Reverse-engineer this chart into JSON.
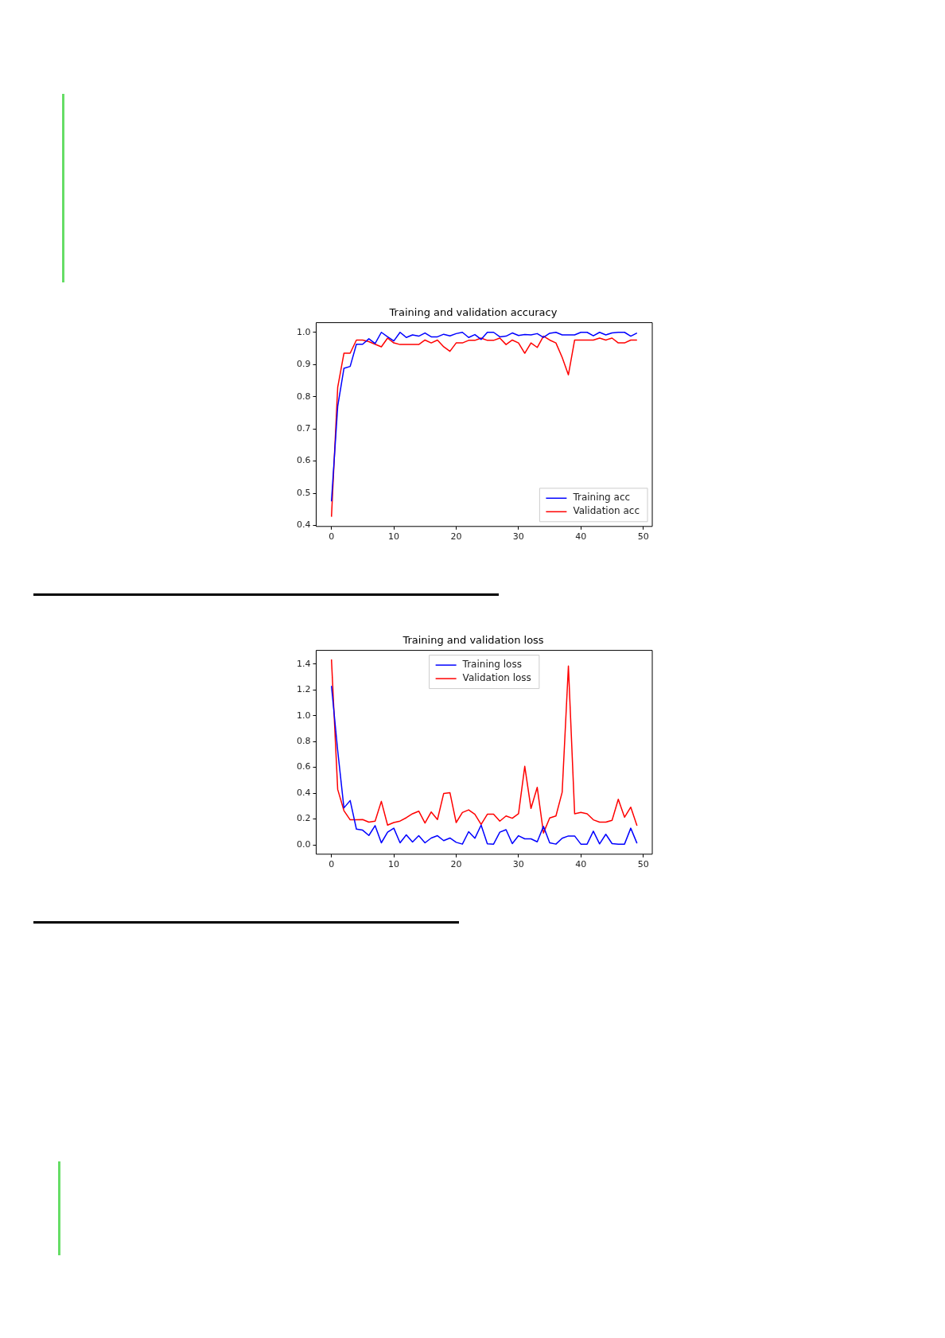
{
  "chart_data": [
    {
      "type": "line",
      "title": "Training and validation accuracy",
      "x": [
        0,
        1,
        2,
        3,
        4,
        5,
        6,
        7,
        8,
        9,
        10,
        11,
        12,
        13,
        14,
        15,
        16,
        17,
        18,
        19,
        20,
        21,
        22,
        23,
        24,
        25,
        26,
        27,
        28,
        29,
        30,
        31,
        32,
        33,
        34,
        35,
        36,
        37,
        38,
        39,
        40,
        41,
        42,
        43,
        44,
        45,
        46,
        47,
        48,
        49
      ],
      "series": [
        {
          "name": "Training acc",
          "color": "#0000ff",
          "values": [
            0.475,
            0.77,
            0.888,
            0.894,
            0.963,
            0.963,
            0.98,
            0.965,
            1.0,
            0.986,
            0.973,
            1.0,
            0.984,
            0.992,
            0.988,
            0.998,
            0.986,
            0.986,
            0.994,
            0.989,
            0.996,
            1.0,
            0.984,
            0.993,
            0.978,
            1.0,
            1.0,
            0.986,
            0.988,
            0.998,
            0.99,
            0.993,
            0.992,
            0.996,
            0.984,
            0.997,
            1.0,
            0.992,
            0.992,
            0.992,
            1.0,
            1.0,
            0.989,
            1.0,
            0.992,
            0.998,
            1.0,
            1.0,
            0.988,
            0.998
          ]
        },
        {
          "name": "Validation acc",
          "color": "#ff0000",
          "values": [
            0.427,
            0.829,
            0.935,
            0.935,
            0.976,
            0.976,
            0.971,
            0.963,
            0.955,
            0.982,
            0.967,
            0.962,
            0.962,
            0.962,
            0.962,
            0.976,
            0.967,
            0.976,
            0.955,
            0.941,
            0.967,
            0.967,
            0.975,
            0.975,
            0.982,
            0.975,
            0.975,
            0.982,
            0.962,
            0.976,
            0.967,
            0.935,
            0.967,
            0.953,
            0.988,
            0.976,
            0.967,
            0.922,
            0.868,
            0.976,
            0.976,
            0.976,
            0.976,
            0.982,
            0.976,
            0.982,
            0.967,
            0.967,
            0.976,
            0.976
          ]
        }
      ],
      "xlim": [
        -2.45,
        51.45
      ],
      "xticks": [
        0,
        10,
        20,
        30,
        40,
        50
      ],
      "ylim": [
        0.397,
        1.03
      ],
      "yticks": [
        {
          "value": 0.4,
          "label": "0.4"
        },
        {
          "value": 0.5,
          "label": "0.5"
        },
        {
          "value": 0.6,
          "label": "0.6"
        },
        {
          "value": 0.7,
          "label": "0.7"
        },
        {
          "value": 0.8,
          "label": "0.8"
        },
        {
          "value": 0.9,
          "label": "0.9"
        },
        {
          "value": 1,
          "label": "1.0"
        }
      ],
      "legend": "bottom right",
      "grid": false,
      "marker": "none",
      "line_style": "solid"
    },
    {
      "type": "line",
      "title": "Training and validation loss",
      "x": [
        0,
        1,
        2,
        3,
        4,
        5,
        6,
        7,
        8,
        9,
        10,
        11,
        12,
        13,
        14,
        15,
        16,
        17,
        18,
        19,
        20,
        21,
        22,
        23,
        24,
        25,
        26,
        27,
        28,
        29,
        30,
        31,
        32,
        33,
        34,
        35,
        36,
        37,
        38,
        39,
        40,
        41,
        42,
        43,
        44,
        45,
        46,
        47,
        48,
        49
      ],
      "series": [
        {
          "name": "Training loss",
          "color": "#0000ff",
          "values": [
            1.23,
            0.73,
            0.286,
            0.343,
            0.122,
            0.114,
            0.073,
            0.149,
            0.016,
            0.098,
            0.129,
            0.016,
            0.078,
            0.022,
            0.071,
            0.016,
            0.053,
            0.071,
            0.033,
            0.053,
            0.02,
            0.006,
            0.102,
            0.051,
            0.153,
            0.008,
            0.006,
            0.098,
            0.118,
            0.01,
            0.071,
            0.047,
            0.047,
            0.024,
            0.143,
            0.016,
            0.006,
            0.051,
            0.069,
            0.069,
            0.006,
            0.006,
            0.106,
            0.008,
            0.082,
            0.01,
            0.006,
            0.006,
            0.129,
            0.012
          ]
        },
        {
          "name": "Validation loss",
          "color": "#ff0000",
          "values": [
            1.435,
            0.429,
            0.265,
            0.194,
            0.194,
            0.196,
            0.176,
            0.184,
            0.337,
            0.153,
            0.173,
            0.184,
            0.21,
            0.241,
            0.261,
            0.169,
            0.255,
            0.196,
            0.398,
            0.404,
            0.173,
            0.251,
            0.271,
            0.237,
            0.159,
            0.237,
            0.237,
            0.184,
            0.224,
            0.206,
            0.241,
            0.608,
            0.282,
            0.445,
            0.092,
            0.208,
            0.224,
            0.408,
            1.384,
            0.241,
            0.251,
            0.241,
            0.194,
            0.176,
            0.176,
            0.19,
            0.353,
            0.214,
            0.292,
            0.149
          ]
        }
      ],
      "xlim": [
        -2.45,
        51.45
      ],
      "xticks": [
        0,
        10,
        20,
        30,
        40,
        50
      ],
      "ylim": [
        -0.072,
        1.505
      ],
      "yticks": [
        {
          "value": 0,
          "label": "0.0"
        },
        {
          "value": 0.2,
          "label": "0.2"
        },
        {
          "value": 0.4,
          "label": "0.4"
        },
        {
          "value": 0.6,
          "label": "0.6"
        },
        {
          "value": 0.8,
          "label": "0.8"
        },
        {
          "value": 1,
          "label": "1.0"
        },
        {
          "value": 1.2,
          "label": "1.2"
        },
        {
          "value": 1.4,
          "label": "1.4"
        }
      ],
      "legend": "top",
      "grid": false,
      "marker": "none",
      "line_style": "solid"
    }
  ]
}
